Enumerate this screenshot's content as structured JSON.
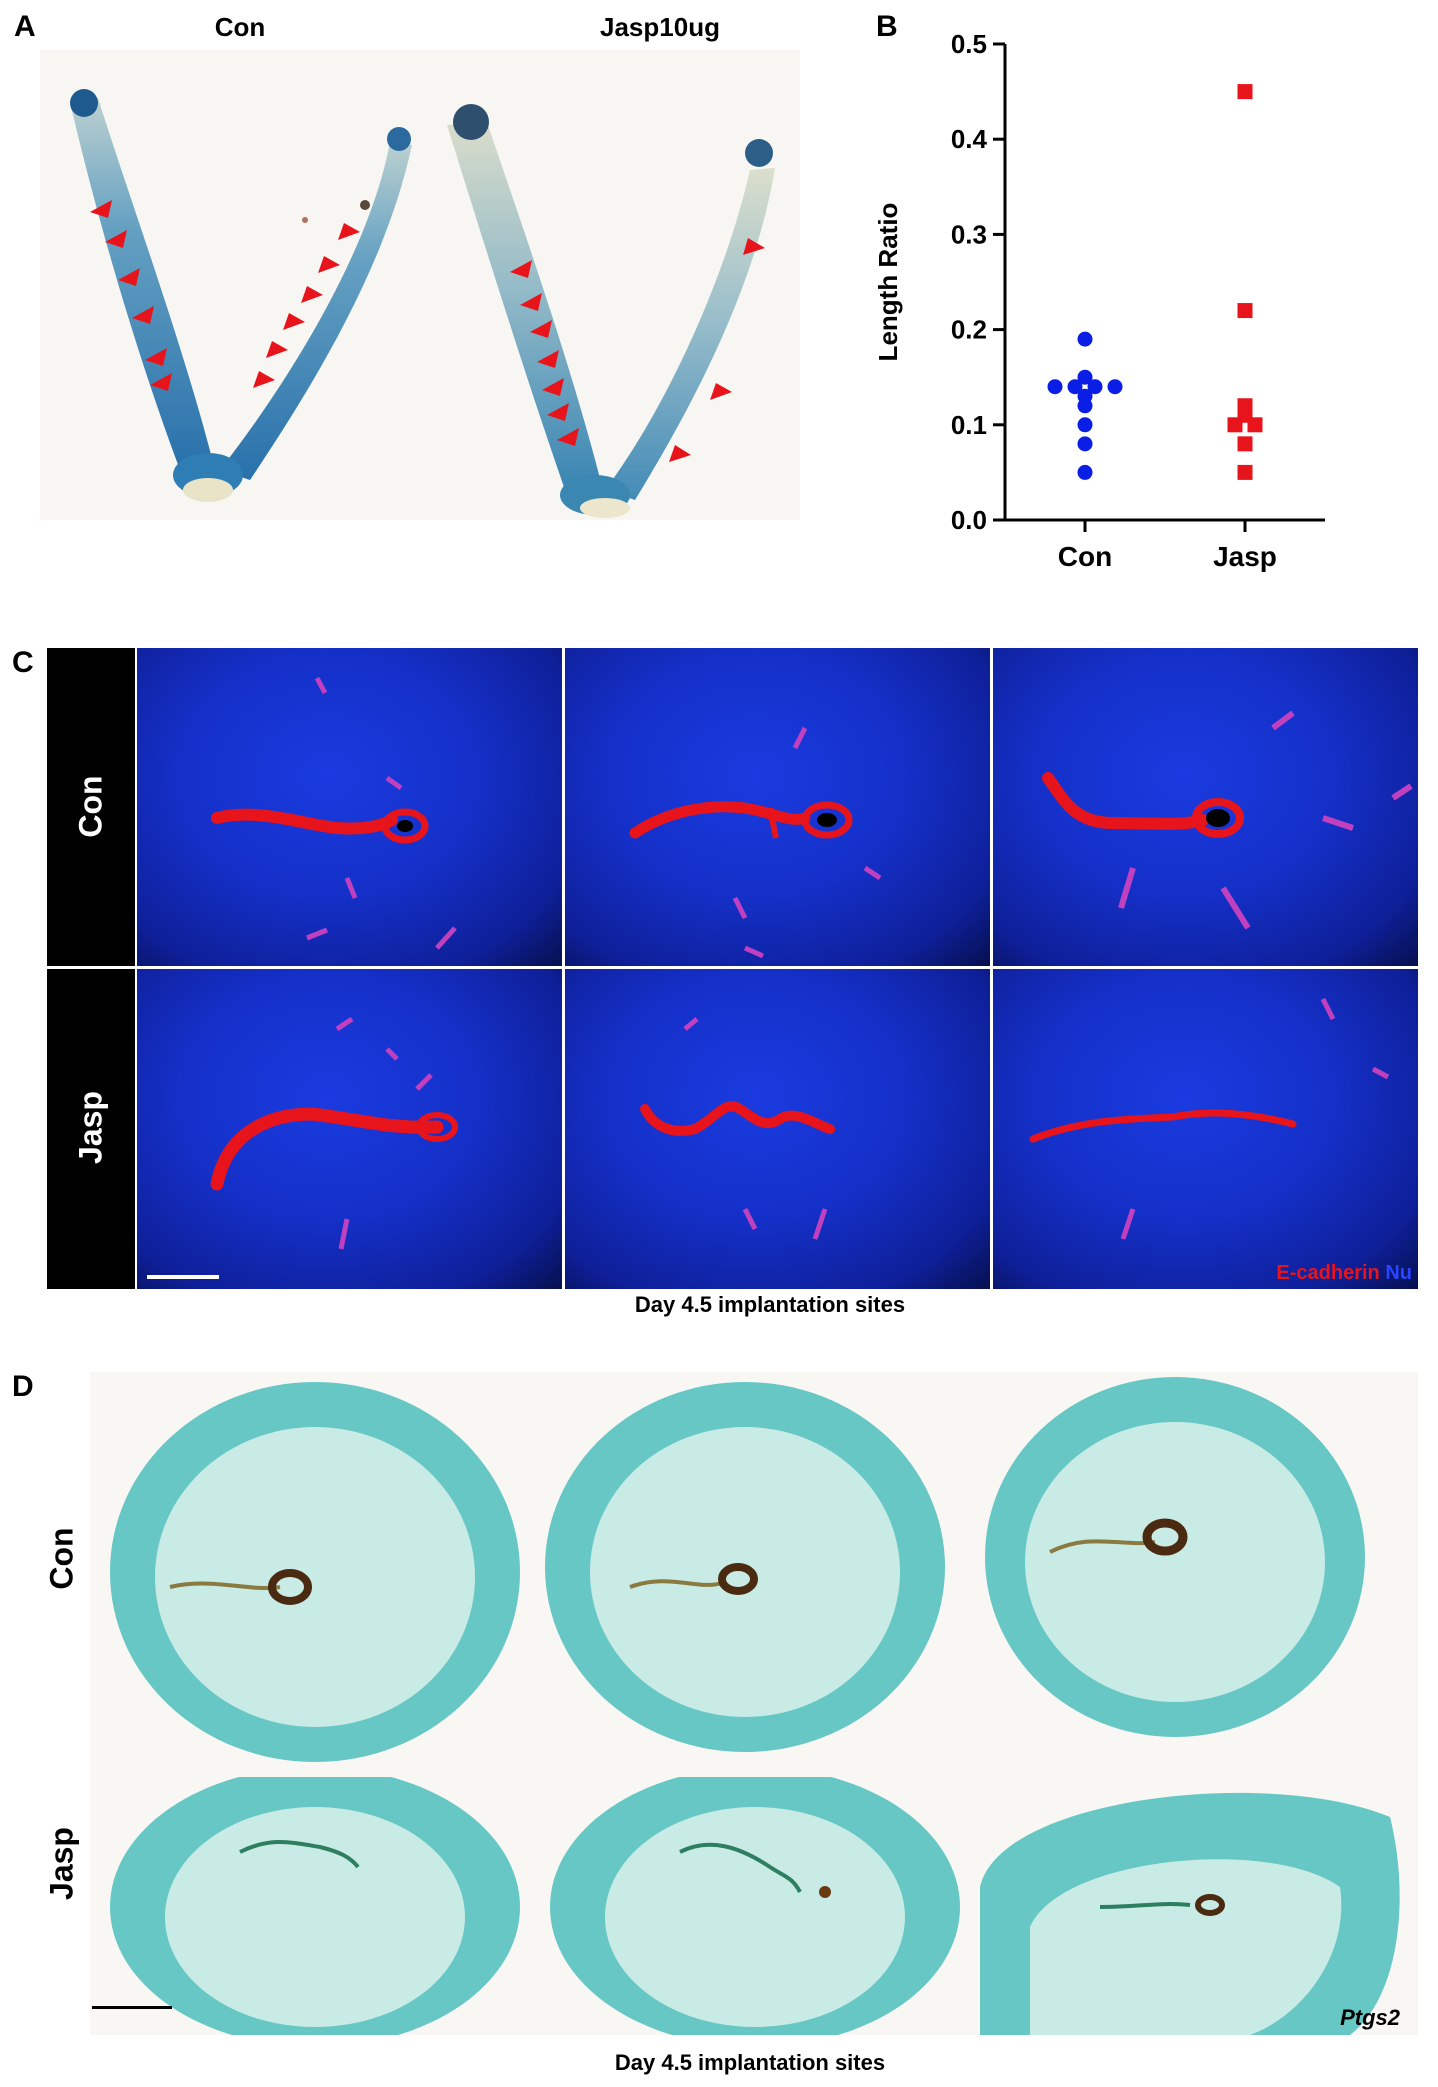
{
  "panel_a": {
    "letter": "A",
    "label_con": "Con",
    "label_jasp": "Jasp10ug"
  },
  "panel_b": {
    "letter": "B"
  },
  "chart_data": {
    "type": "scatter",
    "title": "",
    "xlabel": "",
    "ylabel": "Length Ratio",
    "categories": [
      "Con",
      "Jasp"
    ],
    "ylim": [
      0.0,
      0.5
    ],
    "yticks": [
      "0.0",
      "0.1",
      "0.2",
      "0.3",
      "0.4",
      "0.5"
    ],
    "series": [
      {
        "name": "Con",
        "color": "#0a1ee6",
        "marker": "circle",
        "values": [
          0.19,
          0.15,
          0.14,
          0.14,
          0.14,
          0.14,
          0.13,
          0.12,
          0.1,
          0.08,
          0.05
        ]
      },
      {
        "name": "Jasp",
        "color": "#e8141c",
        "marker": "square",
        "values": [
          0.45,
          0.22,
          0.12,
          0.11,
          0.1,
          0.1,
          0.08,
          0.05
        ]
      }
    ]
  },
  "panel_c": {
    "letter": "C",
    "row_con": "Con",
    "row_jasp": "Jasp",
    "legend_ecad": "E-cadherin",
    "legend_nu": "Nu",
    "caption": "Day 4.5 implantation sites"
  },
  "panel_d": {
    "letter": "D",
    "row_con": "Con",
    "row_jasp": "Jasp",
    "gene": "Ptgs2",
    "caption": "Day 4.5 implantation sites"
  },
  "colors": {
    "arrow": "#e8141c",
    "con_marker": "#0a1ee6",
    "jasp_marker": "#e8141c"
  }
}
